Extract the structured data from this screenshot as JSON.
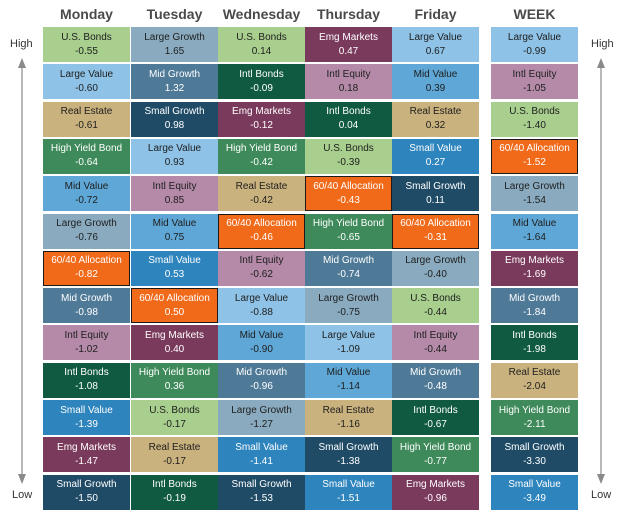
{
  "labels": {
    "high": "High",
    "low": "Low"
  },
  "colors": {
    "Large Value": "#8ec2e6",
    "Mid Value": "#5fa7d6",
    "Small Value": "#2e84bd",
    "Large Growth": "#8aabbf",
    "Mid Growth": "#4f7a97",
    "Small Growth": "#1f4b66",
    "U.S. Bonds": "#a8cf8e",
    "High Yield Bond": "#3e8a5a",
    "Intl Bonds": "#0f5a40",
    "Intl Equity": "#b48aa8",
    "Emg Markets": "#7a3a5c",
    "Real Estate": "#c9b27e",
    "60/40 Allocation": "#f06a1a"
  },
  "dark_text_assets": [
    "Large Value",
    "Mid Value",
    "Large Growth",
    "U.S. Bonds",
    "Intl Equity",
    "Real Estate"
  ],
  "chart_data": {
    "type": "table",
    "columns": [
      {
        "name": "Monday",
        "rows": [
          {
            "asset": "U.S. Bonds",
            "value": "-0.55"
          },
          {
            "asset": "Large Value",
            "value": "-0.60"
          },
          {
            "asset": "Real Estate",
            "value": "-0.61"
          },
          {
            "asset": "High Yield Bond",
            "value": "-0.64"
          },
          {
            "asset": "Mid Value",
            "value": "-0.72"
          },
          {
            "asset": "Large Growth",
            "value": "-0.76"
          },
          {
            "asset": "60/40 Allocation",
            "value": "-0.82"
          },
          {
            "asset": "Mid Growth",
            "value": "-0.98"
          },
          {
            "asset": "Intl Equity",
            "value": "-1.02"
          },
          {
            "asset": "Intl Bonds",
            "value": "-1.08"
          },
          {
            "asset": "Small Value",
            "value": "-1.39"
          },
          {
            "asset": "Emg Markets",
            "value": "-1.47"
          },
          {
            "asset": "Small Growth",
            "value": "-1.50"
          }
        ]
      },
      {
        "name": "Tuesday",
        "rows": [
          {
            "asset": "Large Growth",
            "value": "1.65"
          },
          {
            "asset": "Mid Growth",
            "value": "1.32"
          },
          {
            "asset": "Small Growth",
            "value": "0.98"
          },
          {
            "asset": "Large Value",
            "value": "0.93"
          },
          {
            "asset": "Intl Equity",
            "value": "0.85"
          },
          {
            "asset": "Mid Value",
            "value": "0.75"
          },
          {
            "asset": "Small Value",
            "value": "0.53"
          },
          {
            "asset": "60/40 Allocation",
            "value": "0.50"
          },
          {
            "asset": "Emg Markets",
            "value": "0.40"
          },
          {
            "asset": "High Yield Bond",
            "value": "0.36"
          },
          {
            "asset": "U.S. Bonds",
            "value": "-0.17"
          },
          {
            "asset": "Real Estate",
            "value": "-0.17"
          },
          {
            "asset": "Intl Bonds",
            "value": "-0.19"
          }
        ]
      },
      {
        "name": "Wednesday",
        "rows": [
          {
            "asset": "U.S. Bonds",
            "value": "0.14"
          },
          {
            "asset": "Intl Bonds",
            "value": "-0.09"
          },
          {
            "asset": "Emg Markets",
            "value": "-0.12"
          },
          {
            "asset": "High Yield Bond",
            "value": "-0.42"
          },
          {
            "asset": "Real Estate",
            "value": "-0.42"
          },
          {
            "asset": "60/40 Allocation",
            "value": "-0.46"
          },
          {
            "asset": "Intl Equity",
            "value": "-0.62"
          },
          {
            "asset": "Large Value",
            "value": "-0.88"
          },
          {
            "asset": "Mid Value",
            "value": "-0.90"
          },
          {
            "asset": "Mid Growth",
            "value": "-0.96"
          },
          {
            "asset": "Large Growth",
            "value": "-1.27"
          },
          {
            "asset": "Small Value",
            "value": "-1.41"
          },
          {
            "asset": "Small Growth",
            "value": "-1.53"
          }
        ]
      },
      {
        "name": "Thursday",
        "rows": [
          {
            "asset": "Emg Markets",
            "value": "0.47"
          },
          {
            "asset": "Intl Equity",
            "value": "0.18"
          },
          {
            "asset": "Intl Bonds",
            "value": "0.04"
          },
          {
            "asset": "U.S. Bonds",
            "value": "-0.39"
          },
          {
            "asset": "60/40 Allocation",
            "value": "-0.43"
          },
          {
            "asset": "High Yield Bond",
            "value": "-0.65"
          },
          {
            "asset": "Mid Growth",
            "value": "-0.74"
          },
          {
            "asset": "Large Growth",
            "value": "-0.75"
          },
          {
            "asset": "Large Value",
            "value": "-1.09"
          },
          {
            "asset": "Mid Value",
            "value": "-1.14"
          },
          {
            "asset": "Real Estate",
            "value": "-1.16"
          },
          {
            "asset": "Small Growth",
            "value": "-1.38"
          },
          {
            "asset": "Small Value",
            "value": "-1.51"
          }
        ]
      },
      {
        "name": "Friday",
        "rows": [
          {
            "asset": "Large Value",
            "value": "0.67"
          },
          {
            "asset": "Mid Value",
            "value": "0.39"
          },
          {
            "asset": "Real Estate",
            "value": "0.32"
          },
          {
            "asset": "Small Value",
            "value": "0.27"
          },
          {
            "asset": "Small Growth",
            "value": "0.11"
          },
          {
            "asset": "60/40 Allocation",
            "value": "-0.31"
          },
          {
            "asset": "Large Growth",
            "value": "-0.40"
          },
          {
            "asset": "U.S. Bonds",
            "value": "-0.44"
          },
          {
            "asset": "Intl Equity",
            "value": "-0.44"
          },
          {
            "asset": "Mid Growth",
            "value": "-0.48"
          },
          {
            "asset": "Intl Bonds",
            "value": "-0.67"
          },
          {
            "asset": "High Yield Bond",
            "value": "-0.77"
          },
          {
            "asset": "Emg Markets",
            "value": "-0.96"
          }
        ]
      },
      {
        "name": "WEEK",
        "rows": [
          {
            "asset": "Large Value",
            "value": "-0.99"
          },
          {
            "asset": "Intl Equity",
            "value": "-1.05"
          },
          {
            "asset": "U.S. Bonds",
            "value": "-1.40"
          },
          {
            "asset": "60/40 Allocation",
            "value": "-1.52"
          },
          {
            "asset": "Large Growth",
            "value": "-1.54"
          },
          {
            "asset": "Mid Value",
            "value": "-1.64"
          },
          {
            "asset": "Emg Markets",
            "value": "-1.69"
          },
          {
            "asset": "Mid Growth",
            "value": "-1.84"
          },
          {
            "asset": "Intl Bonds",
            "value": "-1.98"
          },
          {
            "asset": "Real Estate",
            "value": "-2.04"
          },
          {
            "asset": "High Yield Bond",
            "value": "-2.11"
          },
          {
            "asset": "Small Growth",
            "value": "-3.30"
          },
          {
            "asset": "Small Value",
            "value": "-3.49"
          }
        ]
      }
    ]
  }
}
